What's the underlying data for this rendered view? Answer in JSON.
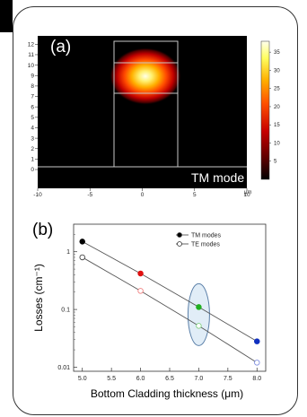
{
  "chart_data": [
    {
      "panel": "(a)",
      "type": "heatmap",
      "annotation": "TM mode",
      "x_unit_label": "μm",
      "x_ticks": [
        -10,
        -5,
        0,
        5,
        10
      ],
      "y_ticks": [
        0,
        1,
        2,
        3,
        4,
        5,
        6,
        7,
        8,
        9,
        10,
        11,
        12
      ],
      "xlim": [
        -10,
        10
      ],
      "ylim": [
        -1.8,
        12.8
      ],
      "colorbar_ticks": [
        5,
        10,
        15,
        20,
        25,
        30,
        35
      ],
      "colorbar_range": [
        0,
        38
      ],
      "colorscale": [
        "#000000",
        "#5a0000",
        "#c80000",
        "#ff5000",
        "#ffb000",
        "#ffff60",
        "#ffffee"
      ],
      "core_center": [
        0,
        8.6
      ],
      "structure": {
        "ridge_x": [
          -3,
          3
        ],
        "ridge_y": [
          0,
          12.3
        ],
        "inner_lines_y": [
          7.1,
          10.1
        ],
        "substrate_line_y": 0
      }
    },
    {
      "panel": "(b)",
      "type": "scatter",
      "xlabel": "Bottom Cladding thickness (μm)",
      "ylabel": "Losses (cm⁻¹)",
      "x_ticks": [
        5.0,
        5.5,
        6.0,
        6.5,
        7.0,
        7.5,
        8.0
      ],
      "x_tick_labels": [
        "5.0",
        "5.5",
        "6.0",
        "6.5",
        "7.0",
        "7.5",
        "8.0"
      ],
      "y_ticks": [
        0.01,
        0.1,
        1
      ],
      "y_tick_labels": [
        "0.01",
        "0.1",
        "1"
      ],
      "xlim": [
        4.85,
        8.15
      ],
      "ylim": [
        0.0085,
        3
      ],
      "yscale": "log",
      "legend_position": "top-right",
      "highlight_ellipse_x": 7.0,
      "series": [
        {
          "name": "TM modes",
          "marker": "filled",
          "x": [
            5.0,
            6.0,
            7.0,
            8.0
          ],
          "y": [
            1.5,
            0.42,
            0.11,
            0.028
          ],
          "colors": [
            "#000000",
            "#e01010",
            "#20b020",
            "#1030c0"
          ]
        },
        {
          "name": "TE modes",
          "marker": "open",
          "x": [
            5.0,
            6.0,
            7.0,
            8.0
          ],
          "y": [
            0.8,
            0.21,
            0.052,
            0.012
          ],
          "colors": [
            "#444444",
            "#f08080",
            "#80d080",
            "#8090e0"
          ]
        }
      ]
    }
  ]
}
